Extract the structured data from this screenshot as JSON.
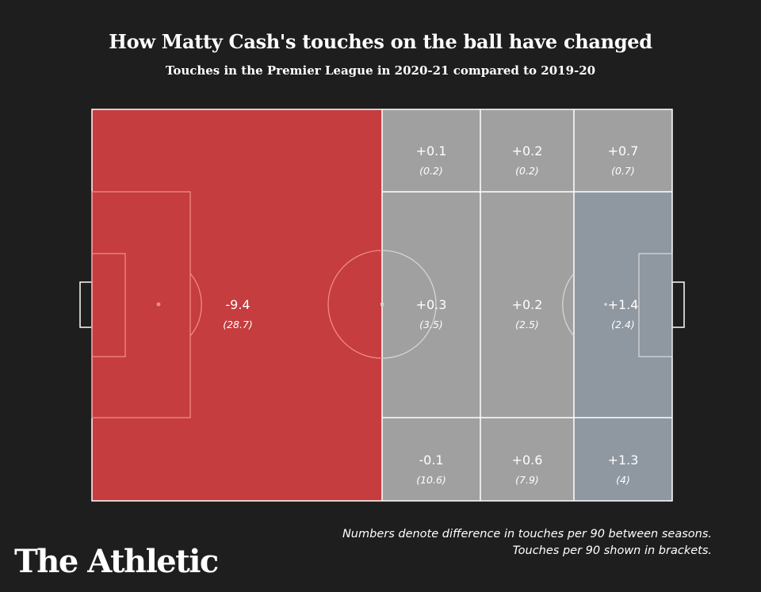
{
  "title": "How Matty Cash's touches on the ball have changed",
  "subtitle": "Touches in the Premier League in 2020-21 compared to 2019-20",
  "note_line1": "Numbers denote difference in touches per 90 between seasons.",
  "note_line2": "Touches per 90 shown in brackets.",
  "logo": "The Athletic",
  "colors": {
    "background": "#1e1e1e",
    "red_zone": "#c53d3e",
    "grey_zone": "#a0a0a0",
    "blue_zone": "#8f97a1",
    "lines": "#ffffff"
  },
  "chart_data": {
    "type": "heatmap",
    "zones": [
      {
        "id": "own-half",
        "difference": "-9.4",
        "touches_per_90": "(28.7)",
        "color": "#c53d3e"
      },
      {
        "id": "top-left",
        "difference": "+0.1",
        "touches_per_90": "(0.2)",
        "color": "#a0a0a0"
      },
      {
        "id": "top-middle",
        "difference": "+0.2",
        "touches_per_90": "(0.2)",
        "color": "#a0a0a0"
      },
      {
        "id": "top-right",
        "difference": "+0.7",
        "touches_per_90": "(0.7)",
        "color": "#a0a0a0"
      },
      {
        "id": "center-left",
        "difference": "+0.3",
        "touches_per_90": "(3.5)",
        "color": "#a0a0a0"
      },
      {
        "id": "center-middle",
        "difference": "+0.2",
        "touches_per_90": "(2.5)",
        "color": "#a0a0a0"
      },
      {
        "id": "center-right",
        "difference": "+1.4",
        "touches_per_90": "(2.4)",
        "color": "#8f97a1"
      },
      {
        "id": "bottom-left",
        "difference": "-0.1",
        "touches_per_90": "(10.6)",
        "color": "#a0a0a0"
      },
      {
        "id": "bottom-middle",
        "difference": "+0.6",
        "touches_per_90": "(7.9)",
        "color": "#a0a0a0"
      },
      {
        "id": "bottom-right",
        "difference": "+1.3",
        "touches_per_90": "(4)",
        "color": "#8f97a1"
      }
    ]
  }
}
